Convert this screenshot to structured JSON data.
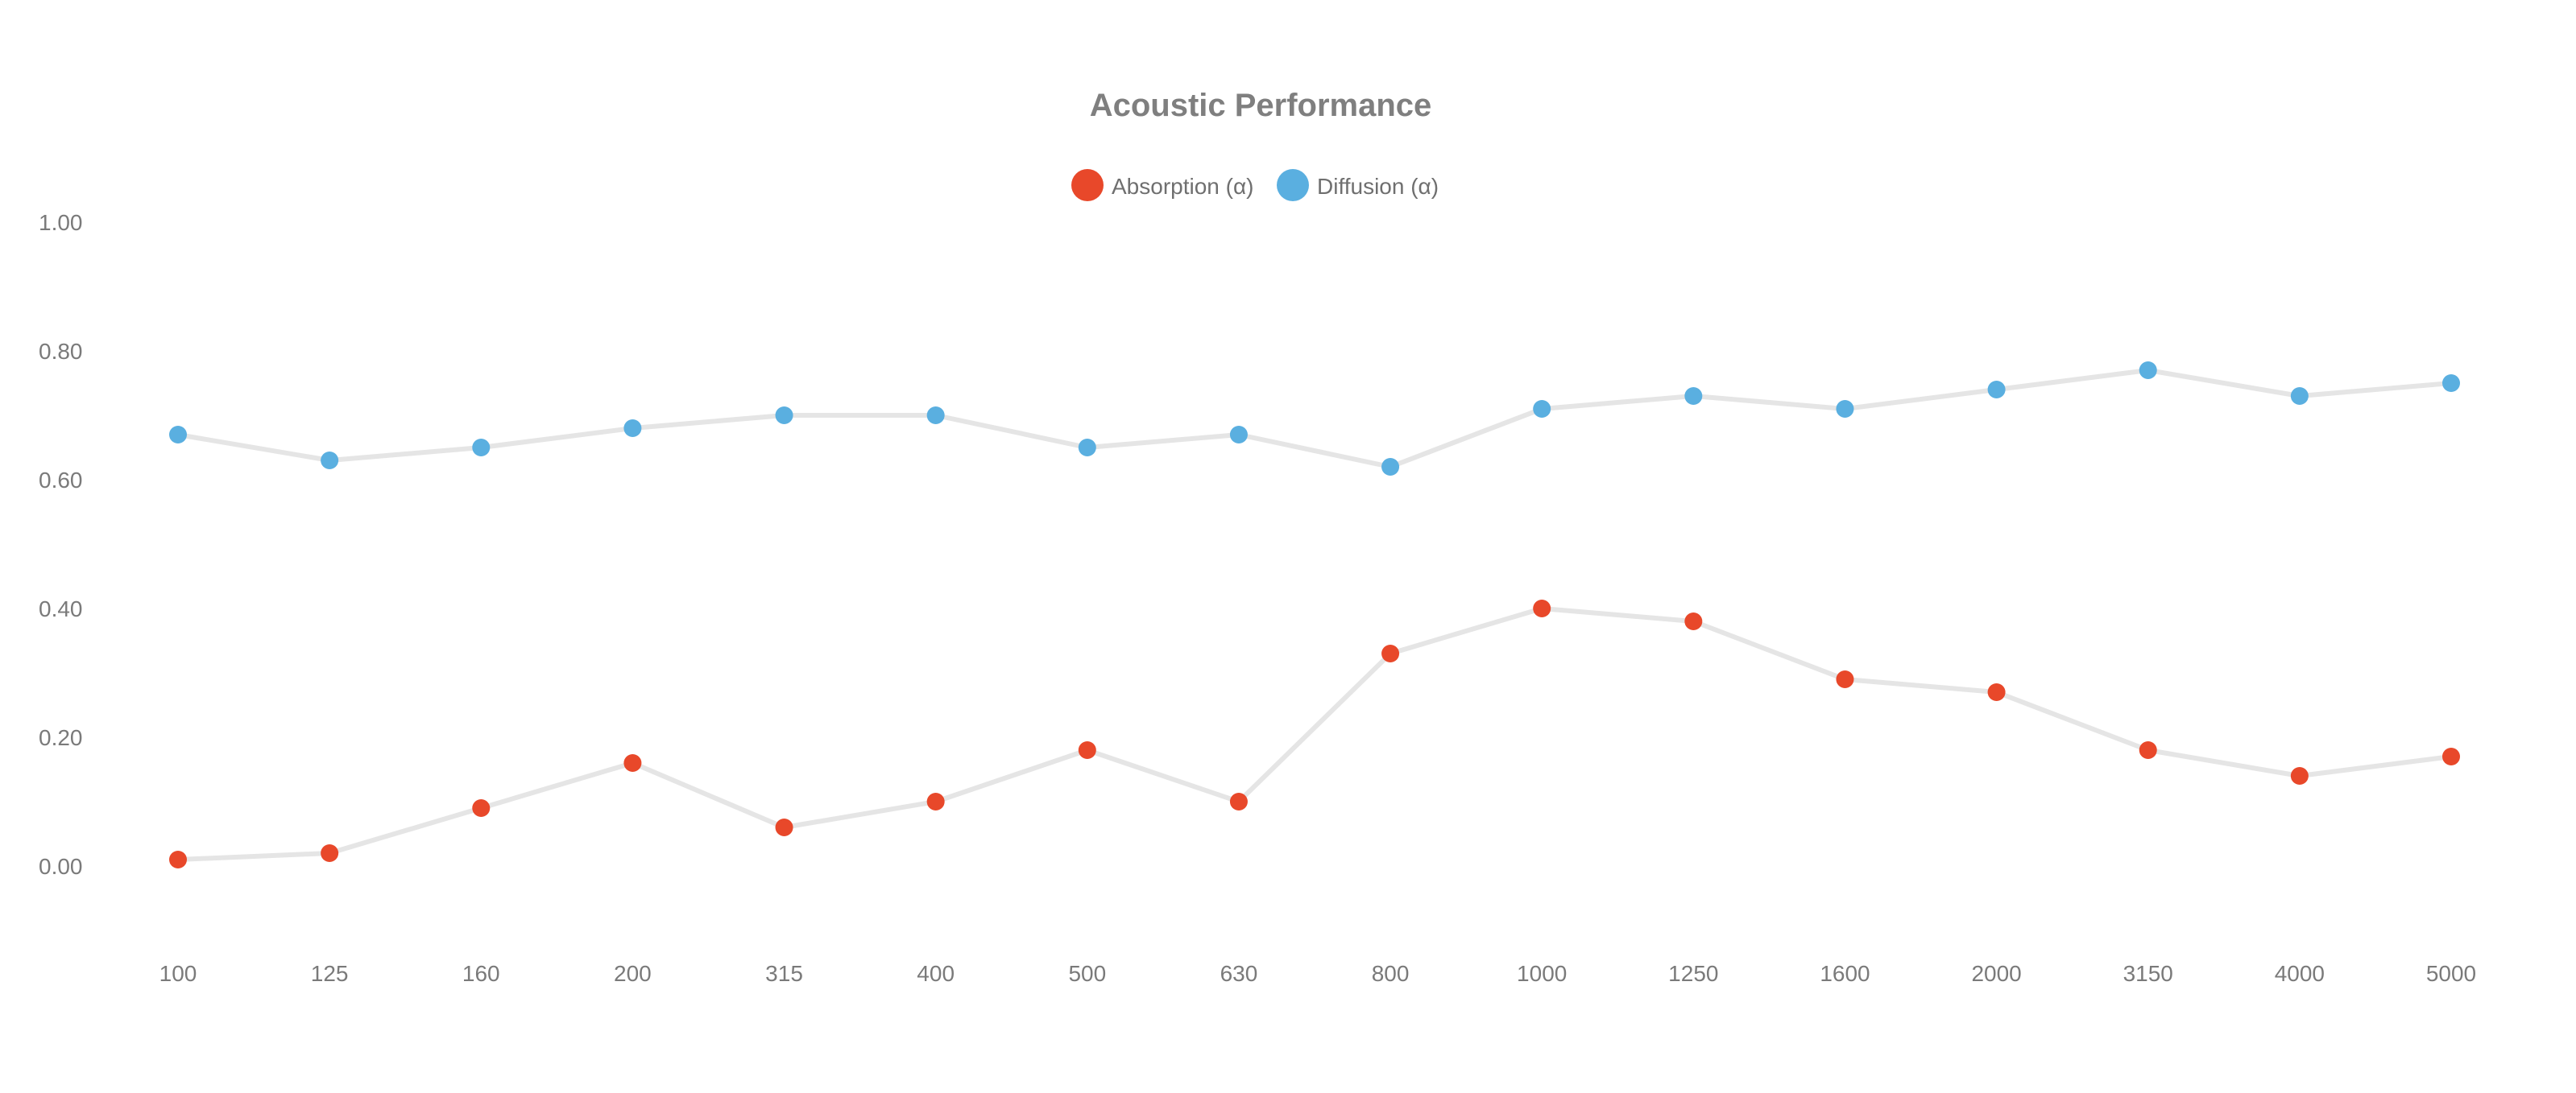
{
  "chart_data": {
    "type": "line",
    "title": "Acoustic Performance",
    "xlabel": "",
    "ylabel": "",
    "ylim": [
      -0.1,
      1.0
    ],
    "y_ticks": [
      "1.00",
      "0.80",
      "0.60",
      "0.40",
      "0.20",
      "0.00"
    ],
    "categories": [
      "100",
      "125",
      "160",
      "200",
      "315",
      "400",
      "500",
      "630",
      "800",
      "1000",
      "1250",
      "1600",
      "2000",
      "3150",
      "4000",
      "5000"
    ],
    "series": [
      {
        "name": "Absorption (α)",
        "color": "#e8482a",
        "values": [
          0.01,
          0.02,
          0.09,
          0.16,
          0.06,
          0.1,
          0.18,
          0.1,
          0.33,
          0.4,
          0.38,
          0.29,
          0.27,
          0.18,
          0.14,
          0.17
        ]
      },
      {
        "name": "Diffusion (α)",
        "color": "#5aafe0",
        "values": [
          0.67,
          0.63,
          0.65,
          0.68,
          0.7,
          0.7,
          0.65,
          0.67,
          0.62,
          0.71,
          0.73,
          0.71,
          0.74,
          0.77,
          0.73,
          0.75
        ]
      }
    ],
    "line_color": "#e5e5e5",
    "grid": false,
    "legend_position": "top-center"
  }
}
